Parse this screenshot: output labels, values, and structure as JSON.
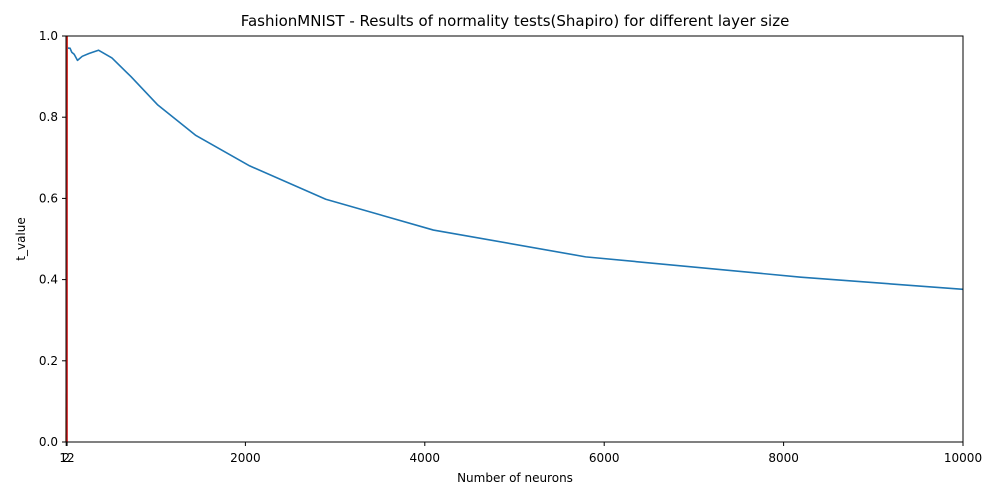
{
  "chart_data": {
    "type": "line",
    "title": "FashionMNIST - Results of normality tests(Shapiro) for different layer size",
    "xlabel": "Number of neurons",
    "ylabel": "t_value",
    "xlim": [
      0,
      10000
    ],
    "ylim": [
      0.0,
      1.0
    ],
    "xticks": [
      2,
      12,
      2000,
      4000,
      6000,
      8000,
      10000
    ],
    "xtick_labels": [
      "2",
      "12",
      "2000",
      "4000",
      "6000",
      "8000",
      "10000"
    ],
    "yticks": [
      0.0,
      0.2,
      0.4,
      0.6,
      0.8,
      1.0
    ],
    "ytick_labels": [
      "0.0",
      "0.2",
      "0.4",
      "0.6",
      "0.8",
      "1.0"
    ],
    "grid": false,
    "series": [
      {
        "color": "#1f77b4",
        "x": [
          2,
          20,
          45,
          64,
          91,
          128,
          181,
          256,
          362,
          512,
          724,
          1024,
          1448,
          2048,
          2896,
          4096,
          5793,
          8192,
          10000
        ],
        "y": [
          0.98,
          0.97,
          0.97,
          0.96,
          0.955,
          0.94,
          0.95,
          0.957,
          0.965,
          0.946,
          0.9,
          0.83,
          0.755,
          0.68,
          0.598,
          0.522,
          0.456,
          0.406,
          0.376
        ]
      },
      {
        "color": "#ff7f0e",
        "x": [
          2,
          12
        ],
        "y": [
          0.0,
          1.0
        ]
      },
      {
        "color": "#d62728",
        "x": [
          12,
          12
        ],
        "y": [
          0.0,
          1.0
        ]
      }
    ]
  }
}
